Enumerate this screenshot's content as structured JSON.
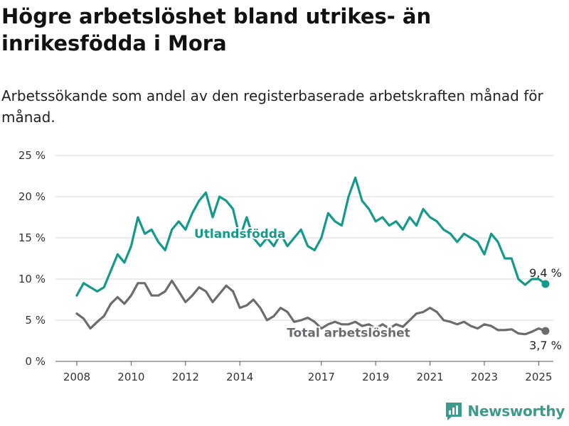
{
  "header": {
    "title": "Högre arbetslöshet bland utrikes- än inrikesfödda i Mora",
    "subtitle": "Arbetssökande som andel av den registerbaserade arbetskraften månad för månad."
  },
  "brand": {
    "name": "Newsworthy",
    "logo_icon": "bar-chart-logo-icon",
    "color": "#3b9a8c"
  },
  "chart_data": {
    "type": "line",
    "title": "",
    "xlabel": "",
    "ylabel": "",
    "x_range": [
      "2008-01",
      "2025-06"
    ],
    "ylim": [
      0,
      25
    ],
    "y_ticks": [
      0,
      5,
      10,
      15,
      20,
      25
    ],
    "y_tick_labels": [
      "0 %",
      "5 %",
      "10 %",
      "15 %",
      "20 %",
      "25 %"
    ],
    "x_ticks": [
      "2008",
      "2010",
      "2012",
      "2014",
      "2017",
      "2019",
      "2021",
      "2023",
      "2025"
    ],
    "grid": "horizontal",
    "series": [
      {
        "name": "Utlandsfödda",
        "color": "#149a8a",
        "end_label": "9,4 %",
        "points": [
          [
            "2008-01",
            8.0
          ],
          [
            "2008-04",
            9.5
          ],
          [
            "2008-07",
            9.0
          ],
          [
            "2008-10",
            8.5
          ],
          [
            "2009-01",
            9.0
          ],
          [
            "2009-04",
            11.0
          ],
          [
            "2009-07",
            13.0
          ],
          [
            "2009-10",
            12.0
          ],
          [
            "2010-01",
            14.0
          ],
          [
            "2010-04",
            17.5
          ],
          [
            "2010-07",
            15.5
          ],
          [
            "2010-10",
            16.0
          ],
          [
            "2011-01",
            14.5
          ],
          [
            "2011-04",
            13.5
          ],
          [
            "2011-07",
            16.0
          ],
          [
            "2011-10",
            17.0
          ],
          [
            "2012-01",
            16.0
          ],
          [
            "2012-04",
            18.0
          ],
          [
            "2012-07",
            19.5
          ],
          [
            "2012-10",
            20.5
          ],
          [
            "2013-01",
            17.5
          ],
          [
            "2013-04",
            20.0
          ],
          [
            "2013-07",
            19.5
          ],
          [
            "2013-10",
            18.5
          ],
          [
            "2014-01",
            15.0
          ],
          [
            "2014-04",
            17.5
          ],
          [
            "2014-07",
            15.0
          ],
          [
            "2014-10",
            14.0
          ],
          [
            "2015-01",
            15.0
          ],
          [
            "2015-04",
            14.0
          ],
          [
            "2015-07",
            15.5
          ],
          [
            "2015-10",
            14.0
          ],
          [
            "2016-01",
            15.0
          ],
          [
            "2016-04",
            16.0
          ],
          [
            "2016-07",
            14.0
          ],
          [
            "2016-10",
            13.5
          ],
          [
            "2017-01",
            15.0
          ],
          [
            "2017-04",
            18.0
          ],
          [
            "2017-07",
            17.0
          ],
          [
            "2017-10",
            16.5
          ],
          [
            "2018-01",
            20.0
          ],
          [
            "2018-04",
            22.3
          ],
          [
            "2018-07",
            19.5
          ],
          [
            "2018-10",
            18.5
          ],
          [
            "2019-01",
            17.0
          ],
          [
            "2019-04",
            17.5
          ],
          [
            "2019-07",
            16.5
          ],
          [
            "2019-10",
            17.0
          ],
          [
            "2020-01",
            16.0
          ],
          [
            "2020-04",
            17.5
          ],
          [
            "2020-07",
            16.5
          ],
          [
            "2020-10",
            18.5
          ],
          [
            "2021-01",
            17.5
          ],
          [
            "2021-04",
            17.0
          ],
          [
            "2021-07",
            16.0
          ],
          [
            "2021-10",
            15.5
          ],
          [
            "2022-01",
            14.5
          ],
          [
            "2022-04",
            15.5
          ],
          [
            "2022-07",
            15.0
          ],
          [
            "2022-10",
            14.5
          ],
          [
            "2023-01",
            13.0
          ],
          [
            "2023-04",
            15.5
          ],
          [
            "2023-07",
            14.5
          ],
          [
            "2023-10",
            12.5
          ],
          [
            "2024-01",
            12.5
          ],
          [
            "2024-04",
            10.0
          ],
          [
            "2024-07",
            9.3
          ],
          [
            "2024-10",
            10.0
          ],
          [
            "2025-01",
            10.0
          ],
          [
            "2025-04",
            9.4
          ]
        ]
      },
      {
        "name": "Total arbetslöshet",
        "color": "#6b6b70",
        "end_label": "3,7 %",
        "points": [
          [
            "2008-01",
            5.8
          ],
          [
            "2008-04",
            5.2
          ],
          [
            "2008-07",
            4.0
          ],
          [
            "2008-10",
            4.8
          ],
          [
            "2009-01",
            5.5
          ],
          [
            "2009-04",
            7.0
          ],
          [
            "2009-07",
            7.8
          ],
          [
            "2009-10",
            7.0
          ],
          [
            "2010-01",
            8.0
          ],
          [
            "2010-04",
            9.5
          ],
          [
            "2010-07",
            9.5
          ],
          [
            "2010-10",
            8.0
          ],
          [
            "2011-01",
            8.0
          ],
          [
            "2011-04",
            8.5
          ],
          [
            "2011-07",
            9.8
          ],
          [
            "2011-10",
            8.5
          ],
          [
            "2012-01",
            7.2
          ],
          [
            "2012-04",
            8.0
          ],
          [
            "2012-07",
            9.0
          ],
          [
            "2012-10",
            8.5
          ],
          [
            "2013-01",
            7.2
          ],
          [
            "2013-04",
            8.2
          ],
          [
            "2013-07",
            9.2
          ],
          [
            "2013-10",
            8.5
          ],
          [
            "2014-01",
            6.5
          ],
          [
            "2014-04",
            6.8
          ],
          [
            "2014-07",
            7.5
          ],
          [
            "2014-10",
            6.5
          ],
          [
            "2015-01",
            5.0
          ],
          [
            "2015-04",
            5.5
          ],
          [
            "2015-07",
            6.5
          ],
          [
            "2015-10",
            6.0
          ],
          [
            "2016-01",
            4.8
          ],
          [
            "2016-04",
            5.0
          ],
          [
            "2016-07",
            5.3
          ],
          [
            "2016-10",
            4.8
          ],
          [
            "2017-01",
            4.0
          ],
          [
            "2017-04",
            4.5
          ],
          [
            "2017-07",
            4.8
          ],
          [
            "2017-10",
            4.5
          ],
          [
            "2018-01",
            4.5
          ],
          [
            "2018-04",
            4.8
          ],
          [
            "2018-07",
            4.3
          ],
          [
            "2018-10",
            4.5
          ],
          [
            "2019-01",
            4.0
          ],
          [
            "2019-04",
            4.5
          ],
          [
            "2019-07",
            4.0
          ],
          [
            "2019-10",
            4.5
          ],
          [
            "2020-01",
            4.2
          ],
          [
            "2020-04",
            5.0
          ],
          [
            "2020-07",
            5.8
          ],
          [
            "2020-10",
            6.0
          ],
          [
            "2021-01",
            6.5
          ],
          [
            "2021-04",
            6.0
          ],
          [
            "2021-07",
            5.0
          ],
          [
            "2021-10",
            4.8
          ],
          [
            "2022-01",
            4.5
          ],
          [
            "2022-04",
            4.8
          ],
          [
            "2022-07",
            4.3
          ],
          [
            "2022-10",
            4.0
          ],
          [
            "2023-01",
            4.5
          ],
          [
            "2023-04",
            4.3
          ],
          [
            "2023-07",
            3.8
          ],
          [
            "2023-10",
            3.8
          ],
          [
            "2024-01",
            3.9
          ],
          [
            "2024-04",
            3.4
          ],
          [
            "2024-07",
            3.3
          ],
          [
            "2024-10",
            3.6
          ],
          [
            "2025-01",
            4.0
          ],
          [
            "2025-04",
            3.7
          ]
        ]
      }
    ]
  }
}
